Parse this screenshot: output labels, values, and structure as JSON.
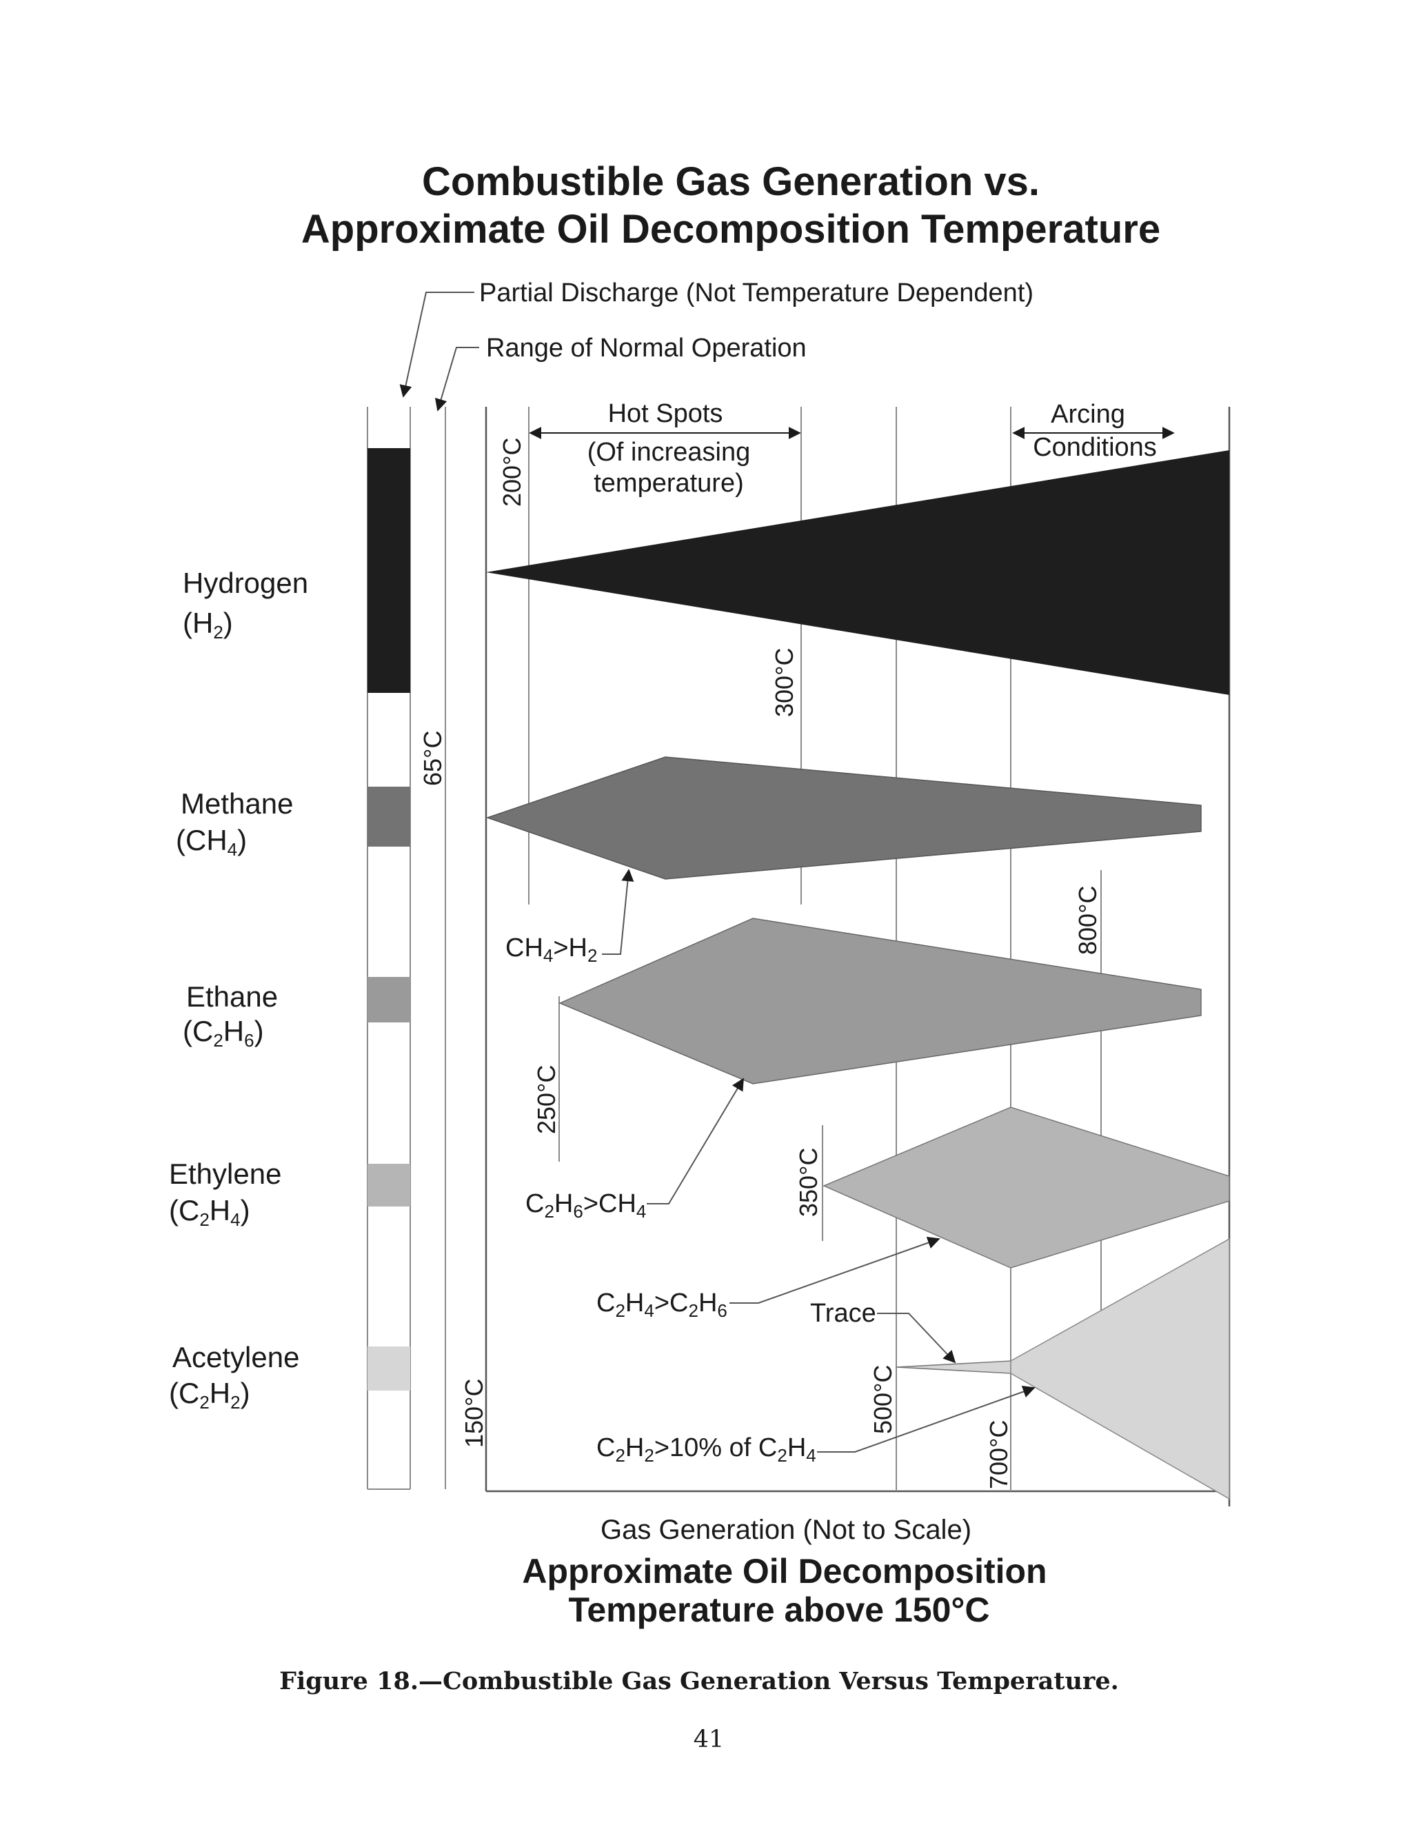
{
  "title": {
    "line1": "Combustible Gas Generation vs.",
    "line2": "Approximate Oil Decomposition Temperature"
  },
  "legend": {
    "partial_discharge": "Partial Discharge (Not Temperature Dependent)",
    "normal_operation": "Range of Normal Operation"
  },
  "regions": {
    "hot_spots_line1": "Hot Spots",
    "hot_spots_line2": "(Of increasing",
    "hot_spots_line3": "temperature)",
    "arcing_line1": "Arcing",
    "arcing_line2": "Conditions"
  },
  "temperatures": {
    "t65": "65°C",
    "t150": "150°C",
    "t200": "200°C",
    "t250": "250°C",
    "t300": "300°C",
    "t350": "350°C",
    "t500": "500°C",
    "t700": "700°C",
    "t800": "800°C"
  },
  "gases": [
    {
      "name": "Hydrogen",
      "formula_parts": [
        "(H",
        "2",
        ")"
      ],
      "color": "#1e1e1e"
    },
    {
      "name": "Methane",
      "formula_parts": [
        "(CH",
        "4",
        ")"
      ],
      "color": "#737373"
    },
    {
      "name": "Ethane",
      "formula_parts": [
        "(C",
        "2",
        "H",
        "6",
        ")"
      ],
      "color": "#9a9a9a"
    },
    {
      "name": "Ethylene",
      "formula_parts": [
        "(C",
        "2",
        "H",
        "4",
        ")"
      ],
      "color": "#b5b5b5"
    },
    {
      "name": "Acetylene",
      "formula_parts": [
        "(C",
        "2",
        "H",
        "2",
        ")"
      ],
      "color": "#d6d6d6"
    }
  ],
  "annotations": {
    "ch4_h2": [
      "CH",
      "4",
      ">H",
      "2"
    ],
    "c2h6_ch4": [
      "C",
      "2",
      "H",
      "6",
      ">CH",
      "4"
    ],
    "c2h4_c2h6": [
      "C",
      "2",
      "H",
      "4",
      ">C",
      "2",
      "H",
      "6"
    ],
    "trace": "Trace",
    "c2h2_c2h4": [
      "C",
      "2",
      "H",
      "2",
      ">10% of C",
      "2",
      "H",
      "4"
    ]
  },
  "axis": {
    "x_label": "Gas Generation (Not to Scale)",
    "bottom_line1": "Approximate Oil Decomposition",
    "bottom_line2": "Temperature above 150°C"
  },
  "caption": "Figure 18.—Combustible Gas Generation Versus Temperature.",
  "page_number": "41"
}
